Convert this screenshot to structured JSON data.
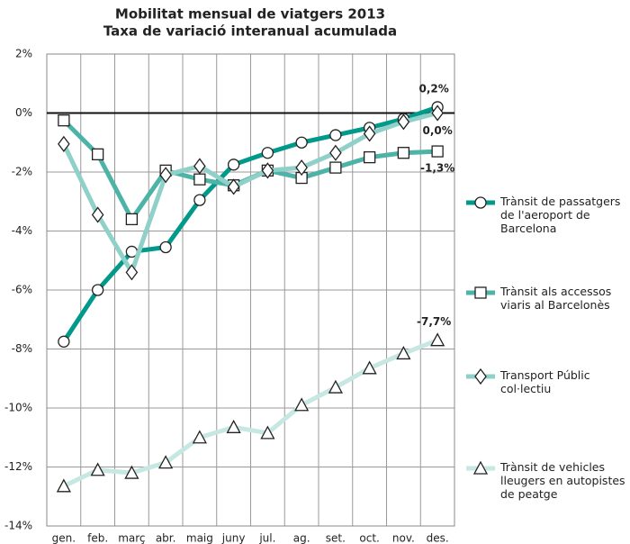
{
  "chart_data": {
    "type": "line",
    "title": "Mobilitat mensual de viatgers 2013",
    "subtitle": "Taxa de variació interanual acumulada",
    "categories": [
      "gen.",
      "feb.",
      "març",
      "abr.",
      "maig",
      "juny",
      "jul.",
      "ag.",
      "set.",
      "oct.",
      "nov.",
      "des."
    ],
    "ylim": [
      -14,
      2
    ],
    "yticks": [
      {
        "value": 2,
        "label": "2%"
      },
      {
        "value": 0,
        "label": "0%"
      },
      {
        "value": -2,
        "label": "-2%"
      },
      {
        "value": -4,
        "label": "-4%"
      },
      {
        "value": -6,
        "label": "-6%"
      },
      {
        "value": -8,
        "label": "-8%"
      },
      {
        "value": -10,
        "label": "-10%"
      },
      {
        "value": -12,
        "label": "-12%"
      },
      {
        "value": -14,
        "label": "-14%"
      }
    ],
    "grid": true,
    "legend": "right",
    "series": [
      {
        "name": "Trànsit de passatgers de l'aeroport de Barcelona",
        "color": "#00998a",
        "marker": "circle",
        "values": [
          -7.75,
          -6.0,
          -4.7,
          -4.55,
          -2.95,
          -1.75,
          -1.35,
          -1.0,
          -0.75,
          -0.5,
          -0.2,
          0.2
        ],
        "value_labels": [
          null,
          null,
          null,
          null,
          null,
          null,
          null,
          null,
          null,
          null,
          null,
          "0,2%"
        ]
      },
      {
        "name": "Trànsit als accessos viaris al Barcelonès",
        "color": "#4db3a6",
        "marker": "square",
        "values": [
          -0.25,
          -1.4,
          -3.6,
          -1.95,
          -2.25,
          -2.45,
          -1.95,
          -2.2,
          -1.85,
          -1.5,
          -1.35,
          -1.3
        ],
        "value_labels": [
          null,
          null,
          null,
          null,
          null,
          null,
          null,
          null,
          null,
          null,
          null,
          "-1,3%"
        ]
      },
      {
        "name": "Transport Públic col·lectiu",
        "color": "#8fd0c8",
        "marker": "diamond",
        "values": [
          -1.05,
          -3.45,
          -5.4,
          -2.1,
          -1.8,
          -2.5,
          -1.95,
          -1.85,
          -1.35,
          -0.7,
          -0.3,
          0.0
        ],
        "value_labels": [
          null,
          null,
          null,
          null,
          null,
          null,
          null,
          null,
          null,
          null,
          null,
          "0,0%"
        ]
      },
      {
        "name": "Trànsit de vehicles lleugers en autopistes de peatge",
        "color": "#c6e7e2",
        "marker": "triangle",
        "values": [
          -12.65,
          -12.1,
          -12.2,
          -11.85,
          -11.0,
          -10.65,
          -10.85,
          -9.9,
          -9.3,
          -8.65,
          -8.15,
          -7.7
        ],
        "value_labels": [
          null,
          null,
          null,
          null,
          null,
          null,
          null,
          null,
          null,
          null,
          null,
          "-7,7%"
        ]
      }
    ]
  }
}
